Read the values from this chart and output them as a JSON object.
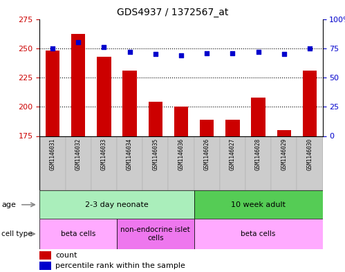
{
  "title": "GDS4937 / 1372567_at",
  "samples": [
    "GSM1146031",
    "GSM1146032",
    "GSM1146033",
    "GSM1146034",
    "GSM1146035",
    "GSM1146036",
    "GSM1146026",
    "GSM1146027",
    "GSM1146028",
    "GSM1146029",
    "GSM1146030"
  ],
  "counts": [
    248,
    262,
    243,
    231,
    204,
    200,
    189,
    189,
    208,
    180,
    231
  ],
  "percentile": [
    75,
    80,
    76,
    72,
    70,
    69,
    71,
    71,
    72,
    70,
    75
  ],
  "ylim_left": [
    175,
    275
  ],
  "ylim_right": [
    0,
    100
  ],
  "yticks_left": [
    175,
    200,
    225,
    250,
    275
  ],
  "yticks_right": [
    0,
    25,
    50,
    75,
    100
  ],
  "bar_color": "#cc0000",
  "dot_color": "#0000cc",
  "age_groups": [
    {
      "label": "2-3 day neonate",
      "start": 0,
      "end": 6,
      "color": "#aaeebb"
    },
    {
      "label": "10 week adult",
      "start": 6,
      "end": 11,
      "color": "#55cc55"
    }
  ],
  "cell_type_groups": [
    {
      "label": "beta cells",
      "start": 0,
      "end": 3,
      "color": "#ffaaff"
    },
    {
      "label": "non-endocrine islet\ncells",
      "start": 3,
      "end": 6,
      "color": "#ee77ee"
    },
    {
      "label": "beta cells",
      "start": 6,
      "end": 11,
      "color": "#ffaaff"
    }
  ],
  "legend_count_label": "count",
  "legend_pct_label": "percentile rank within the sample",
  "grid_dotted_at": [
    200,
    225,
    250
  ],
  "bar_width": 0.55
}
